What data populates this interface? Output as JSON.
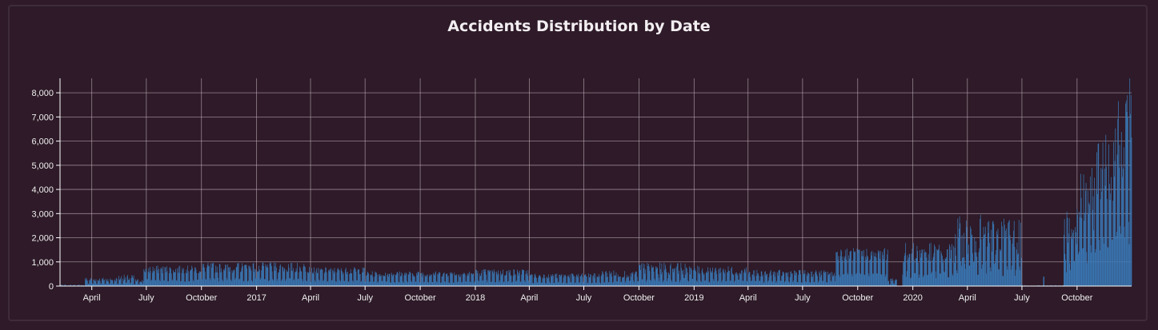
{
  "chart_data": {
    "type": "bar",
    "title": "Accidents Distribution by Date",
    "xlabel": "",
    "ylabel": "",
    "x_range": [
      "2016-02-08",
      "2020-12-31"
    ],
    "ylim": [
      0,
      8600
    ],
    "grid": true,
    "bar_color": "#3a7ab8",
    "background": "#2e1a28",
    "grid_color": "#b9a9b4",
    "y_ticks": [
      0,
      1000,
      2000,
      3000,
      4000,
      5000,
      6000,
      7000,
      8000
    ],
    "y_tick_labels": [
      "0",
      "1,000",
      "2,000",
      "3,000",
      "4,000",
      "5,000",
      "6,000",
      "7,000",
      "8,000"
    ],
    "x_ticks": [
      {
        "date": "2016-04-01",
        "label": "April"
      },
      {
        "date": "2016-07-01",
        "label": "July"
      },
      {
        "date": "2016-10-01",
        "label": "October"
      },
      {
        "date": "2017-01-01",
        "label": "2017"
      },
      {
        "date": "2017-04-01",
        "label": "April"
      },
      {
        "date": "2017-07-01",
        "label": "July"
      },
      {
        "date": "2017-10-01",
        "label": "October"
      },
      {
        "date": "2018-01-01",
        "label": "2018"
      },
      {
        "date": "2018-04-01",
        "label": "April"
      },
      {
        "date": "2018-07-01",
        "label": "July"
      },
      {
        "date": "2018-10-01",
        "label": "October"
      },
      {
        "date": "2019-01-01",
        "label": "2019"
      },
      {
        "date": "2019-04-01",
        "label": "April"
      },
      {
        "date": "2019-07-01",
        "label": "July"
      },
      {
        "date": "2019-10-01",
        "label": "October"
      },
      {
        "date": "2020-01-01",
        "label": "2020"
      },
      {
        "date": "2020-04-01",
        "label": "April"
      },
      {
        "date": "2020-07-01",
        "label": "July"
      },
      {
        "date": "2020-10-01",
        "label": "October"
      }
    ],
    "segments": [
      {
        "start": "2016-02-08",
        "end": "2016-03-20",
        "base": 40,
        "amp": 20
      },
      {
        "start": "2016-03-21",
        "end": "2016-05-14",
        "base": 270,
        "amp": 90
      },
      {
        "start": "2016-05-15",
        "end": "2016-06-10",
        "base": 330,
        "amp": 140
      },
      {
        "start": "2016-06-11",
        "end": "2016-06-25",
        "base": 220,
        "amp": 80
      },
      {
        "start": "2016-06-26",
        "end": "2016-09-30",
        "base": 680,
        "amp": 170
      },
      {
        "start": "2016-10-01",
        "end": "2017-03-31",
        "base": 760,
        "amp": 220
      },
      {
        "start": "2017-04-01",
        "end": "2017-06-30",
        "base": 630,
        "amp": 150
      },
      {
        "start": "2017-07-01",
        "end": "2017-12-31",
        "base": 500,
        "amp": 120
      },
      {
        "start": "2018-01-01",
        "end": "2018-03-31",
        "base": 560,
        "amp": 150
      },
      {
        "start": "2018-04-01",
        "end": "2018-07-31",
        "base": 420,
        "amp": 110
      },
      {
        "start": "2018-08-01",
        "end": "2018-09-30",
        "base": 500,
        "amp": 160
      },
      {
        "start": "2018-10-01",
        "end": "2018-12-31",
        "base": 720,
        "amp": 260
      },
      {
        "start": "2019-01-01",
        "end": "2019-03-31",
        "base": 640,
        "amp": 200
      },
      {
        "start": "2019-04-01",
        "end": "2019-08-24",
        "base": 520,
        "amp": 150
      },
      {
        "start": "2019-08-25",
        "end": "2019-11-20",
        "base": 1320,
        "amp": 260
      },
      {
        "start": "2019-11-21",
        "end": "2019-12-05",
        "base": 250,
        "amp": 80
      },
      {
        "start": "2019-12-06",
        "end": "2019-12-14",
        "base": 0,
        "amp": 0
      },
      {
        "start": "2019-12-15",
        "end": "2020-03-10",
        "base": 1350,
        "amp": 450
      },
      {
        "start": "2020-03-11",
        "end": "2020-06-30",
        "base": 2050,
        "amp": 900
      },
      {
        "start": "2020-07-01",
        "end": "2020-08-05",
        "base": 25,
        "amp": 15
      },
      {
        "start": "2020-08-06",
        "end": "2020-08-07",
        "base": 400,
        "amp": 30
      },
      {
        "start": "2020-08-08",
        "end": "2020-09-08",
        "base": 25,
        "amp": 15
      },
      {
        "start": "2020-09-09",
        "end": "2020-09-30",
        "base": 2200,
        "amp": 900
      },
      {
        "start": "2020-10-01",
        "end": "2020-10-31",
        "base": 3600,
        "amp": 1300
      },
      {
        "start": "2020-11-01",
        "end": "2020-11-30",
        "base": 4900,
        "amp": 1400
      },
      {
        "start": "2020-12-01",
        "end": "2020-12-31",
        "base": 6300,
        "amp": 1800
      }
    ],
    "peak": {
      "date": "2020-12-28",
      "value": 8600
    }
  }
}
